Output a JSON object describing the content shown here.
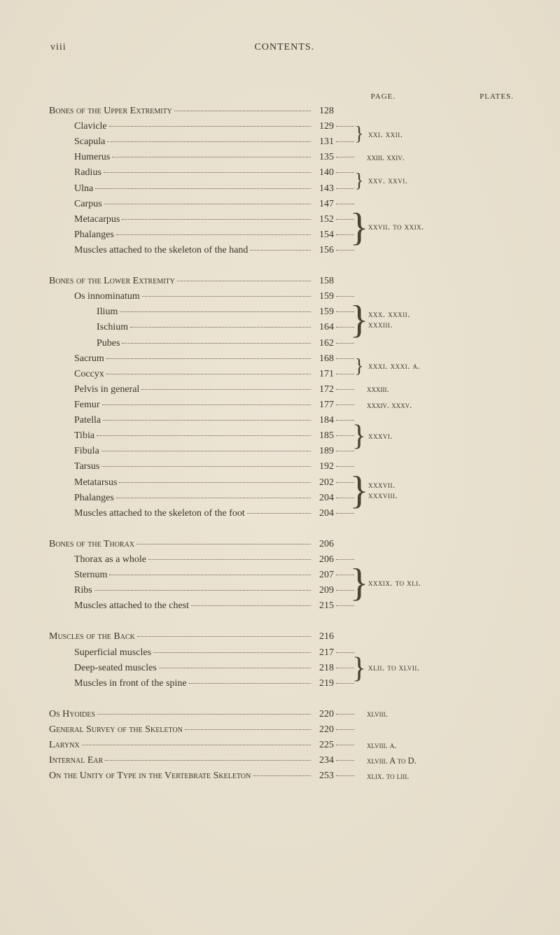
{
  "page_meta": {
    "folio": "viii",
    "running_title": "CONTENTS.",
    "col_page": "PAGE.",
    "col_plates": "PLATES."
  },
  "groups": [
    {
      "type": "section",
      "indent": 0,
      "title": "Bones of the Upper Extremity",
      "page": "128",
      "plate": ""
    },
    {
      "type": "pair",
      "indent": 1,
      "rows": [
        {
          "title": "Clavicle",
          "page": "129"
        },
        {
          "title": "Scapula",
          "page": "131"
        }
      ],
      "plate": "xxi. xxii."
    },
    {
      "type": "single",
      "indent": 1,
      "title": "Humerus",
      "page": "135",
      "plate": "xxiii. xxiv."
    },
    {
      "type": "pair",
      "indent": 1,
      "rows": [
        {
          "title": "Radius",
          "page": "140"
        },
        {
          "title": "Ulna",
          "page": "143"
        }
      ],
      "plate": "xxv. xxvi."
    },
    {
      "type": "quad",
      "indent": 1,
      "rows": [
        {
          "title": "Carpus",
          "page": "147"
        },
        {
          "title": "Metacarpus",
          "page": "152"
        },
        {
          "title": "Phalanges",
          "page": "154"
        },
        {
          "title": "Muscles attached to the skeleton of the hand",
          "page": "156"
        }
      ],
      "plate": "xxvii. to xxix."
    },
    {
      "type": "section",
      "indent": 0,
      "title": "Bones of the Lower Extremity",
      "page": "158",
      "plate": "",
      "gap_before": true
    },
    {
      "type": "quad",
      "indent": 1,
      "rows": [
        {
          "title": "Os innominatum",
          "page": "159"
        },
        {
          "title": "Ilium",
          "page": "159",
          "indent": 2
        },
        {
          "title": "Ischium",
          "page": "164",
          "indent": 2
        },
        {
          "title": "Pubes",
          "page": "162",
          "indent": 2
        }
      ],
      "plate": "xxx. xxxii.\nxxxiii."
    },
    {
      "type": "pair",
      "indent": 1,
      "rows": [
        {
          "title": "Sacrum",
          "page": "168"
        },
        {
          "title": "Coccyx",
          "page": "171"
        }
      ],
      "plate": "xxxi. xxxi. a."
    },
    {
      "type": "single",
      "indent": 1,
      "title": "Pelvis in general",
      "page": "172",
      "plate": "xxxiii."
    },
    {
      "type": "single",
      "indent": 1,
      "title": "Femur",
      "page": "177",
      "plate": "xxxiv. xxxv."
    },
    {
      "type": "triple",
      "indent": 1,
      "rows": [
        {
          "title": "Patella",
          "page": "184"
        },
        {
          "title": "Tibia",
          "page": "185"
        },
        {
          "title": "Fibula",
          "page": "189"
        }
      ],
      "plate": "xxxvi."
    },
    {
      "type": "quad_partial",
      "indent": 1,
      "rows": [
        {
          "title": "Tarsus",
          "page": "192"
        },
        {
          "title": "Metatarsus",
          "page": "202"
        },
        {
          "title": "Phalanges",
          "page": "204"
        },
        {
          "title": "Muscles attached to the skeleton of the foot",
          "page": "204"
        }
      ],
      "plate": "xxxvii.\nxxxviii."
    },
    {
      "type": "section",
      "indent": 0,
      "title": "Bones of the Thorax",
      "page": "206",
      "plate": "",
      "gap_before": true
    },
    {
      "type": "quad",
      "indent": 1,
      "rows": [
        {
          "title": "Thorax as a whole",
          "page": "206"
        },
        {
          "title": "Sternum",
          "page": "207"
        },
        {
          "title": "Ribs",
          "page": "209"
        },
        {
          "title": "Muscles attached to the chest",
          "page": "215"
        }
      ],
      "plate": "xxxix. to xli."
    },
    {
      "type": "section",
      "indent": 0,
      "title": "Muscles of the Back",
      "page": "216",
      "plate": "",
      "gap_before": true
    },
    {
      "type": "triple",
      "indent": 1,
      "rows": [
        {
          "title": "Superficial muscles",
          "page": "217"
        },
        {
          "title": "Deep-seated muscles",
          "page": "218"
        },
        {
          "title": "Muscles in front of the spine",
          "page": "219"
        }
      ],
      "plate": "xlii. to xlvii."
    },
    {
      "type": "single",
      "indent": 0,
      "title": "Os Hyoides",
      "page": "220",
      "plate": "xlviii.",
      "gap_before": true,
      "smallcaps": true
    },
    {
      "type": "single",
      "indent": 0,
      "title": "General Survey of the Skeleton",
      "page": "220",
      "plate": "",
      "smallcaps": true
    },
    {
      "type": "single",
      "indent": 0,
      "title": "Larynx",
      "page": "225",
      "plate": "xlviii. a.",
      "smallcaps": true
    },
    {
      "type": "single",
      "indent": 0,
      "title": "Internal Ear",
      "page": "234",
      "plate": "xlviii. A to D.",
      "smallcaps": true
    },
    {
      "type": "single",
      "indent": 0,
      "title": "On the Unity of Type in the Vertebrate Skeleton",
      "page": "253",
      "plate": "xlix. to liii.",
      "smallcaps": true
    }
  ],
  "style": {
    "background": "#e8e0ce",
    "text_color": "#3a342a",
    "dot_color": "#6b5f4a"
  }
}
